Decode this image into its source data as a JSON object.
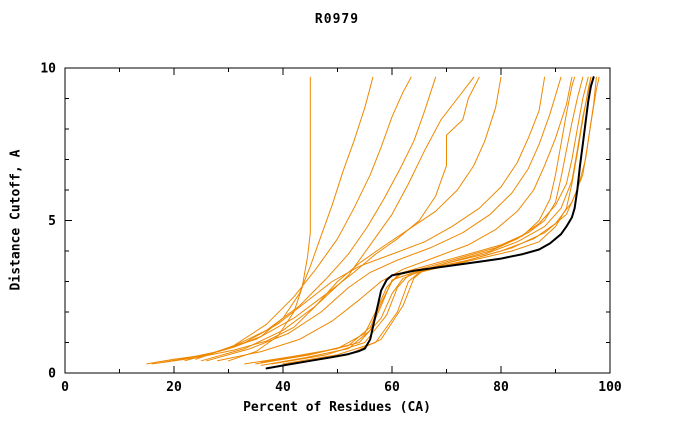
{
  "chart": {
    "title": "R0979",
    "xlabel": "Percent of Residues (CA)",
    "ylabel": "Distance Cutoff, A"
  },
  "chart_data": {
    "type": "line",
    "title": "R0979",
    "xlabel": "Percent of Residues (CA)",
    "ylabel": "Distance Cutoff, A",
    "xlim": [
      0,
      100
    ],
    "ylim": [
      0,
      10
    ],
    "x_ticks": [
      0,
      20,
      40,
      60,
      80,
      100
    ],
    "y_ticks": [
      0,
      5,
      10
    ],
    "x_minor_step": 10,
    "y_minor_step": 1,
    "grid": false,
    "legend": "none",
    "colors": {
      "model": "#ee8800",
      "reference": "#000000"
    },
    "series": [
      {
        "name": "model-01",
        "role": "model",
        "points": [
          [
            15,
            0.3
          ],
          [
            20,
            0.45
          ],
          [
            26,
            0.6
          ],
          [
            31,
            0.85
          ],
          [
            36,
            1.2
          ],
          [
            40,
            1.8
          ],
          [
            43,
            2.6
          ],
          [
            45,
            3.5
          ],
          [
            47,
            4.5
          ],
          [
            49,
            5.5
          ],
          [
            51,
            6.6
          ],
          [
            53,
            7.6
          ],
          [
            55,
            8.7
          ],
          [
            56.5,
            9.7
          ]
        ]
      },
      {
        "name": "model-02",
        "role": "model",
        "points": [
          [
            30,
            0.4
          ],
          [
            35,
            0.7
          ],
          [
            39,
            1.2
          ],
          [
            42,
            2.0
          ],
          [
            43.5,
            2.8
          ],
          [
            44.5,
            3.8
          ],
          [
            45,
            4.6
          ],
          [
            45,
            9.7
          ]
        ]
      },
      {
        "name": "model-03",
        "role": "model",
        "points": [
          [
            24,
            0.45
          ],
          [
            31,
            0.9
          ],
          [
            37,
            1.6
          ],
          [
            42,
            2.5
          ],
          [
            46,
            3.4
          ],
          [
            50,
            4.4
          ],
          [
            53,
            5.4
          ],
          [
            56,
            6.5
          ],
          [
            58,
            7.4
          ],
          [
            60,
            8.4
          ],
          [
            62,
            9.2
          ],
          [
            63.5,
            9.7
          ]
        ]
      },
      {
        "name": "model-04",
        "role": "model",
        "points": [
          [
            22,
            0.4
          ],
          [
            30,
            0.8
          ],
          [
            37,
            1.4
          ],
          [
            43,
            2.2
          ],
          [
            48,
            3.1
          ],
          [
            52,
            3.9
          ],
          [
            55.5,
            4.8
          ],
          [
            58.5,
            5.7
          ],
          [
            61.5,
            6.7
          ],
          [
            64,
            7.6
          ],
          [
            66,
            8.6
          ],
          [
            68,
            9.7
          ]
        ]
      },
      {
        "name": "model-05",
        "role": "model",
        "points": [
          [
            25,
            0.4
          ],
          [
            33,
            0.8
          ],
          [
            40,
            1.4
          ],
          [
            46,
            2.2
          ],
          [
            52,
            3.2
          ],
          [
            56,
            4.2
          ],
          [
            60,
            5.2
          ],
          [
            63,
            6.2
          ],
          [
            66,
            7.3
          ],
          [
            69,
            8.3
          ],
          [
            72,
            9.0
          ],
          [
            75,
            9.7
          ]
        ]
      },
      {
        "name": "model-06",
        "role": "model",
        "points": [
          [
            16,
            0.3
          ],
          [
            24,
            0.5
          ],
          [
            31,
            0.75
          ],
          [
            37,
            1.05
          ],
          [
            42,
            1.5
          ],
          [
            46,
            2.2
          ],
          [
            50,
            3.0
          ],
          [
            54,
            3.6
          ],
          [
            58,
            4.1
          ],
          [
            63,
            4.7
          ],
          [
            68,
            5.3
          ],
          [
            72,
            6.0
          ],
          [
            75,
            6.8
          ],
          [
            77,
            7.6
          ],
          [
            79,
            8.7
          ],
          [
            80,
            9.7
          ]
        ]
      },
      {
        "name": "model-07",
        "role": "model",
        "points": [
          [
            18,
            0.35
          ],
          [
            26,
            0.6
          ],
          [
            33,
            1.0
          ],
          [
            39,
            1.6
          ],
          [
            44,
            2.3
          ],
          [
            49,
            3.0
          ],
          [
            54,
            3.5
          ],
          [
            60,
            3.9
          ],
          [
            66,
            4.3
          ],
          [
            71,
            4.8
          ],
          [
            76,
            5.4
          ],
          [
            80,
            6.1
          ],
          [
            83,
            6.9
          ],
          [
            85,
            7.7
          ],
          [
            87,
            8.6
          ],
          [
            88,
            9.7
          ]
        ]
      },
      {
        "name": "model-08",
        "role": "model",
        "points": [
          [
            26,
            0.4
          ],
          [
            34,
            0.8
          ],
          [
            41,
            1.3
          ],
          [
            47,
            2.0
          ],
          [
            52,
            2.8
          ],
          [
            56,
            3.3
          ],
          [
            61,
            3.7
          ],
          [
            67,
            4.1
          ],
          [
            73,
            4.6
          ],
          [
            78,
            5.2
          ],
          [
            82,
            5.9
          ],
          [
            85,
            6.7
          ],
          [
            87,
            7.5
          ],
          [
            89,
            8.5
          ],
          [
            90,
            9.1
          ],
          [
            91,
            9.7
          ]
        ]
      },
      {
        "name": "model-09",
        "role": "model",
        "points": [
          [
            28,
            0.4
          ],
          [
            36,
            0.7
          ],
          [
            43,
            1.1
          ],
          [
            49,
            1.7
          ],
          [
            54,
            2.4
          ],
          [
            58,
            3.0
          ],
          [
            62,
            3.4
          ],
          [
            68,
            3.8
          ],
          [
            74,
            4.2
          ],
          [
            79,
            4.7
          ],
          [
            83,
            5.3
          ],
          [
            86,
            6.0
          ],
          [
            88,
            6.8
          ],
          [
            90,
            7.7
          ],
          [
            92,
            8.8
          ],
          [
            93,
            9.7
          ]
        ]
      },
      {
        "name": "model-10",
        "role": "model",
        "points": [
          [
            33,
            0.3
          ],
          [
            42,
            0.55
          ],
          [
            50,
            0.8
          ],
          [
            55,
            1.3
          ],
          [
            57,
            2.0
          ],
          [
            59,
            2.8
          ],
          [
            61,
            3.2
          ],
          [
            67,
            3.5
          ],
          [
            73,
            3.8
          ],
          [
            79,
            4.1
          ],
          [
            84,
            4.5
          ],
          [
            87,
            5.0
          ],
          [
            89,
            5.7
          ],
          [
            90,
            6.5
          ],
          [
            91,
            7.5
          ],
          [
            92,
            8.5
          ],
          [
            93,
            9.4
          ],
          [
            93.5,
            9.7
          ]
        ]
      },
      {
        "name": "model-11",
        "role": "model",
        "points": [
          [
            35,
            0.3
          ],
          [
            45,
            0.6
          ],
          [
            52,
            0.9
          ],
          [
            56,
            1.5
          ],
          [
            58,
            2.3
          ],
          [
            60,
            3.0
          ],
          [
            62,
            3.3
          ],
          [
            68,
            3.6
          ],
          [
            74,
            3.9
          ],
          [
            80,
            4.2
          ],
          [
            85,
            4.6
          ],
          [
            88,
            5.0
          ],
          [
            90,
            5.6
          ],
          [
            91,
            6.4
          ],
          [
            92,
            7.3
          ],
          [
            93,
            8.2
          ],
          [
            94,
            9.0
          ],
          [
            95,
            9.7
          ]
        ]
      },
      {
        "name": "model-12",
        "role": "model",
        "points": [
          [
            36,
            0.35
          ],
          [
            46,
            0.65
          ],
          [
            54,
            1.0
          ],
          [
            58,
            1.8
          ],
          [
            60,
            2.6
          ],
          [
            62,
            3.1
          ],
          [
            66,
            3.4
          ],
          [
            72,
            3.7
          ],
          [
            78,
            4.0
          ],
          [
            83,
            4.4
          ],
          [
            87,
            4.9
          ],
          [
            90,
            5.5
          ],
          [
            92,
            6.2
          ],
          [
            93,
            7.0
          ],
          [
            94,
            8.0
          ],
          [
            95,
            9.0
          ],
          [
            96,
            9.7
          ]
        ]
      },
      {
        "name": "model-13",
        "role": "model",
        "points": [
          [
            38,
            0.3
          ],
          [
            48,
            0.6
          ],
          [
            55,
            1.0
          ],
          [
            59,
            1.9
          ],
          [
            61,
            2.8
          ],
          [
            63,
            3.2
          ],
          [
            70,
            3.6
          ],
          [
            77,
            3.9
          ],
          [
            83,
            4.3
          ],
          [
            88,
            4.8
          ],
          [
            91,
            5.4
          ],
          [
            93,
            6.3
          ],
          [
            94,
            7.3
          ],
          [
            95,
            8.4
          ],
          [
            96,
            9.2
          ],
          [
            96.5,
            9.7
          ]
        ]
      },
      {
        "name": "model-14",
        "role": "model",
        "points": [
          [
            40,
            0.3
          ],
          [
            50,
            0.6
          ],
          [
            57,
            1.0
          ],
          [
            61,
            2.0
          ],
          [
            63,
            3.0
          ],
          [
            65,
            3.3
          ],
          [
            72,
            3.6
          ],
          [
            80,
            4.0
          ],
          [
            86,
            4.4
          ],
          [
            90,
            4.9
          ],
          [
            93,
            5.6
          ],
          [
            95,
            6.5
          ],
          [
            96,
            7.6
          ],
          [
            97,
            8.8
          ],
          [
            97.5,
            9.7
          ]
        ]
      },
      {
        "name": "model-15",
        "role": "model",
        "points": [
          [
            42,
            0.3
          ],
          [
            52,
            0.6
          ],
          [
            58,
            1.1
          ],
          [
            62,
            2.2
          ],
          [
            64,
            3.1
          ],
          [
            66,
            3.4
          ],
          [
            74,
            3.7
          ],
          [
            82,
            4.1
          ],
          [
            88,
            4.6
          ],
          [
            92,
            5.2
          ],
          [
            94,
            6.0
          ],
          [
            95.5,
            7.0
          ],
          [
            96.5,
            8.2
          ],
          [
            97.5,
            9.3
          ],
          [
            98,
            9.7
          ]
        ]
      },
      {
        "name": "model-16",
        "role": "model",
        "points": [
          [
            36,
            0.25
          ],
          [
            44,
            0.5
          ],
          [
            52,
            0.8
          ],
          [
            56,
            1.4
          ],
          [
            58,
            2.2
          ],
          [
            60,
            3.05
          ],
          [
            64,
            3.3
          ],
          [
            70,
            3.5
          ],
          [
            76,
            3.75
          ],
          [
            82,
            4.0
          ],
          [
            87,
            4.3
          ],
          [
            90,
            4.8
          ],
          [
            92,
            5.4
          ],
          [
            93,
            6.2
          ],
          [
            94,
            7.2
          ],
          [
            95,
            8.3
          ],
          [
            96,
            9.3
          ],
          [
            96.5,
            9.7
          ]
        ]
      },
      {
        "name": "model-17",
        "role": "model",
        "points": [
          [
            20,
            0.4
          ],
          [
            28,
            0.7
          ],
          [
            35,
            1.1
          ],
          [
            42,
            1.8
          ],
          [
            48,
            2.6
          ],
          [
            53,
            3.3
          ],
          [
            57,
            3.9
          ],
          [
            61,
            4.4
          ],
          [
            65,
            5.0
          ],
          [
            68,
            5.8
          ],
          [
            70,
            6.8
          ],
          [
            70,
            7.8
          ],
          [
            73,
            8.3
          ],
          [
            74,
            9.0
          ],
          [
            76,
            9.7
          ]
        ]
      },
      {
        "name": "reference",
        "role": "reference",
        "points": [
          [
            37,
            0.15
          ],
          [
            41,
            0.28
          ],
          [
            45,
            0.4
          ],
          [
            49,
            0.52
          ],
          [
            52,
            0.62
          ],
          [
            54,
            0.72
          ],
          [
            55,
            0.8
          ],
          [
            56,
            1.1
          ],
          [
            57,
            1.9
          ],
          [
            58,
            2.7
          ],
          [
            59,
            3.05
          ],
          [
            60,
            3.2
          ],
          [
            64,
            3.35
          ],
          [
            68,
            3.45
          ],
          [
            72,
            3.55
          ],
          [
            76,
            3.65
          ],
          [
            80,
            3.75
          ],
          [
            84,
            3.9
          ],
          [
            87,
            4.05
          ],
          [
            89,
            4.25
          ],
          [
            91,
            4.55
          ],
          [
            92,
            4.8
          ],
          [
            93,
            5.1
          ],
          [
            93.5,
            5.4
          ],
          [
            94,
            6.0
          ],
          [
            94.5,
            6.8
          ],
          [
            95,
            7.5
          ],
          [
            95.5,
            8.2
          ],
          [
            96,
            8.9
          ],
          [
            96.5,
            9.4
          ],
          [
            97,
            9.7
          ]
        ]
      }
    ]
  }
}
